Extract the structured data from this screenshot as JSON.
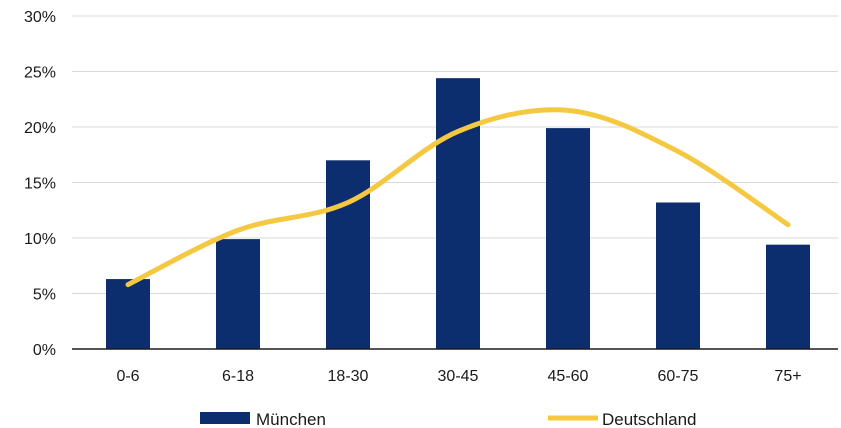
{
  "chart_data": {
    "type": "bar",
    "categories": [
      "0-6",
      "6-18",
      "18-30",
      "30-45",
      "45-60",
      "60-75",
      "75+"
    ],
    "series": [
      {
        "name": "München",
        "kind": "bar",
        "values": [
          6.3,
          9.9,
          17.0,
          24.4,
          19.9,
          13.2,
          9.4
        ],
        "color": "#0c2d6e"
      },
      {
        "name": "Deutschland",
        "kind": "line",
        "values": [
          5.8,
          10.7,
          13.2,
          19.6,
          21.5,
          17.8,
          11.2
        ],
        "color": "#f5c842"
      }
    ],
    "ylim": [
      0,
      30
    ],
    "yticks": [
      0,
      5,
      10,
      15,
      20,
      25,
      30
    ],
    "ytick_labels": [
      "0%",
      "5%",
      "10%",
      "15%",
      "20%",
      "25%",
      "30%"
    ],
    "grid": true,
    "legend_position": "bottom",
    "title": "",
    "xlabel": "",
    "ylabel": ""
  }
}
